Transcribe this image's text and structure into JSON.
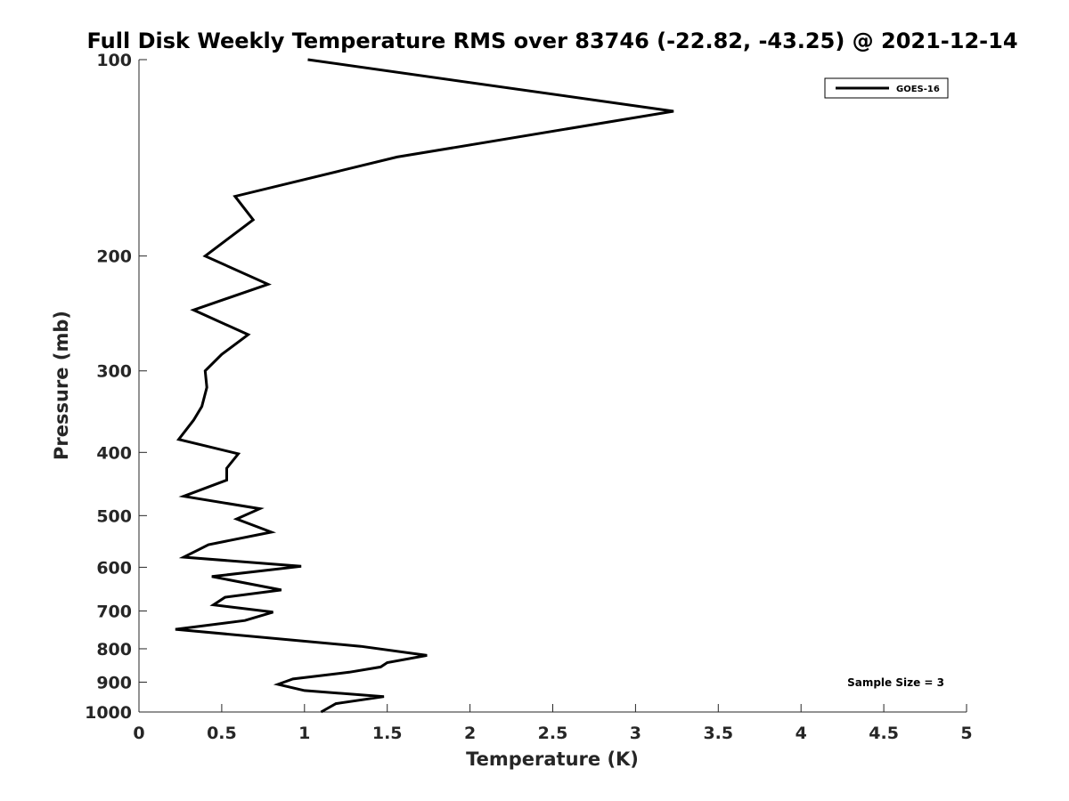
{
  "chart_data": {
    "type": "line",
    "title": "Full Disk Weekly Temperature RMS over 83746 (-22.82, -43.25) @ 2021-12-14",
    "xlabel": "Temperature (K)",
    "ylabel": "Pressure (mb)",
    "xlim": [
      0,
      5
    ],
    "ylim": [
      100,
      1000
    ],
    "y_scale": "log",
    "y_reversed": true,
    "grid": false,
    "x_ticks": [
      "0",
      "0.5",
      "1",
      "1.5",
      "2",
      "2.5",
      "3",
      "3.5",
      "4",
      "4.5",
      "5"
    ],
    "y_ticks": [
      "100",
      "200",
      "300",
      "400",
      "500",
      "600",
      "700",
      "800",
      "900",
      "1000"
    ],
    "legend": {
      "position": "top-right",
      "entries": [
        "GOES-16"
      ]
    },
    "annotation": "Sample Size = 3",
    "series": [
      {
        "name": "GOES-16",
        "color": "#000000",
        "x": [
          1.02,
          3.23,
          1.56,
          0.58,
          0.69,
          0.4,
          0.78,
          0.33,
          0.66,
          0.5,
          0.4,
          0.41,
          0.38,
          0.33,
          0.24,
          0.6,
          0.53,
          0.53,
          0.27,
          0.73,
          0.59,
          0.8,
          0.42,
          0.27,
          0.98,
          0.44,
          0.86,
          0.52,
          0.45,
          0.81,
          0.64,
          0.22,
          1.34,
          1.74,
          1.5,
          1.46,
          1.27,
          0.93,
          0.84,
          1.0,
          1.48,
          1.19,
          1.1
        ],
        "y": [
          100,
          120,
          141,
          162,
          176,
          200,
          221,
          242,
          264,
          283,
          300,
          318,
          340,
          357,
          382,
          402,
          423,
          441,
          467,
          488,
          506,
          530,
          554,
          579,
          598,
          620,
          650,
          667,
          685,
          703,
          724,
          747,
          793,
          819,
          840,
          853,
          869,
          890,
          907,
          927,
          947,
          971,
          1000
        ]
      }
    ]
  }
}
